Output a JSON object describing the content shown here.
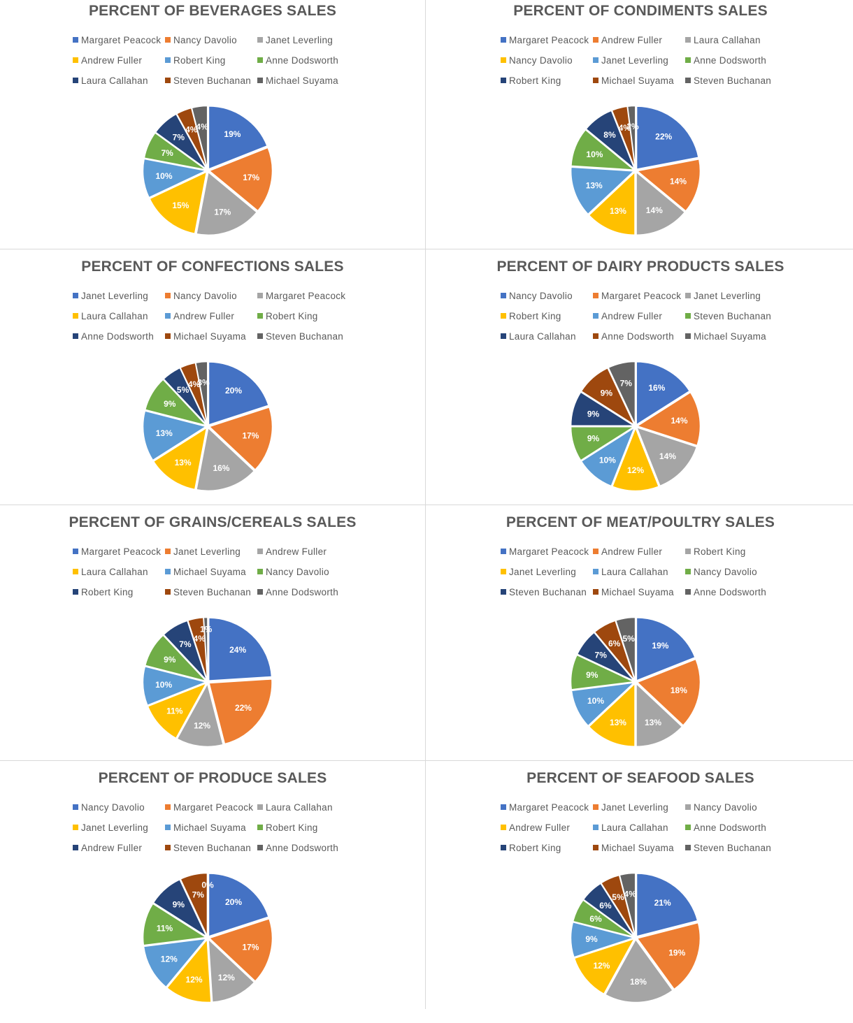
{
  "palette": [
    "#4472C4",
    "#ED7D31",
    "#A5A5A5",
    "#FFC000",
    "#5B9BD5",
    "#70AD47",
    "#264478",
    "#9E480E",
    "#636363"
  ],
  "chart_data": [
    {
      "type": "pie",
      "title": "PERCENT OF BEVERAGES SALES",
      "categories": [
        "Margaret Peacock",
        "Nancy Davolio",
        "Janet Leverling",
        "Andrew Fuller",
        "Robert King",
        "Anne Dodsworth",
        "Laura Callahan",
        "Steven Buchanan",
        "Michael Suyama"
      ],
      "values": [
        19,
        17,
        17,
        15,
        10,
        7,
        7,
        4,
        4
      ],
      "labels": [
        "19%",
        "17%",
        "17%",
        "15%",
        "10%",
        "7%",
        "7%",
        "4%",
        "4%"
      ],
      "legend": "top"
    },
    {
      "type": "pie",
      "title": "PERCENT OF CONDIMENTS SALES",
      "categories": [
        "Margaret Peacock",
        "Andrew Fuller",
        "Laura Callahan",
        "Nancy Davolio",
        "Janet Leverling",
        "Anne Dodsworth",
        "Robert King",
        "Michael Suyama",
        "Steven Buchanan"
      ],
      "values": [
        22,
        14,
        14,
        13,
        13,
        10,
        8,
        4,
        2
      ],
      "labels": [
        "22%",
        "14%",
        "14%",
        "13%",
        "13%",
        "10%",
        "8%",
        "4%",
        "2%"
      ],
      "legend": "top"
    },
    {
      "type": "pie",
      "title": "PERCENT OF CONFECTIONS SALES",
      "categories": [
        "Janet Leverling",
        "Nancy Davolio",
        "Margaret Peacock",
        "Laura Callahan",
        "Andrew Fuller",
        "Robert King",
        "Anne Dodsworth",
        "Michael Suyama",
        "Steven Buchanan"
      ],
      "values": [
        20,
        17,
        16,
        13,
        13,
        9,
        5,
        4,
        3
      ],
      "labels": [
        "20%",
        "17%",
        "16%",
        "13%",
        "13%",
        "9%",
        "5%",
        "4%",
        "3%"
      ],
      "legend": "top"
    },
    {
      "type": "pie",
      "title": "PERCENT OF DAIRY PRODUCTS SALES",
      "categories": [
        "Nancy Davolio",
        "Margaret Peacock",
        "Janet Leverling",
        "Robert King",
        "Andrew Fuller",
        "Steven Buchanan",
        "Laura Callahan",
        "Anne Dodsworth",
        "Michael Suyama"
      ],
      "values": [
        16,
        14,
        14,
        12,
        10,
        9,
        9,
        9,
        7
      ],
      "labels": [
        "16%",
        "14%",
        "14%",
        "12%",
        "10%",
        "9%",
        "9%",
        "9%",
        "7%"
      ],
      "legend": "top"
    },
    {
      "type": "pie",
      "title": "PERCENT OF GRAINS/CEREALS SALES",
      "categories": [
        "Margaret Peacock",
        "Janet Leverling",
        "Andrew Fuller",
        "Laura Callahan",
        "Michael Suyama",
        "Nancy Davolio",
        "Robert King",
        "Steven Buchanan",
        "Anne Dodsworth"
      ],
      "values": [
        24,
        22,
        12,
        11,
        10,
        9,
        7,
        4,
        1
      ],
      "labels": [
        "24%",
        "22%",
        "12%",
        "11%",
        "10%",
        "9%",
        "7%",
        "4%",
        "1%"
      ],
      "legend": "top"
    },
    {
      "type": "pie",
      "title": "PERCENT OF MEAT/POULTRY SALES",
      "categories": [
        "Margaret Peacock",
        "Andrew Fuller",
        "Robert King",
        "Janet Leverling",
        "Laura Callahan",
        "Nancy Davolio",
        "Steven Buchanan",
        "Michael Suyama",
        "Anne Dodsworth"
      ],
      "values": [
        19,
        18,
        13,
        13,
        10,
        9,
        7,
        6,
        5
      ],
      "labels": [
        "19%",
        "18%",
        "13%",
        "13%",
        "10%",
        "9%",
        "7%",
        "6%",
        "5%"
      ],
      "legend": "top"
    },
    {
      "type": "pie",
      "title": "PERCENT OF PRODUCE SALES",
      "categories": [
        "Nancy Davolio",
        "Margaret Peacock",
        "Laura Callahan",
        "Janet Leverling",
        "Michael Suyama",
        "Robert King",
        "Andrew Fuller",
        "Steven Buchanan",
        "Anne Dodsworth"
      ],
      "values": [
        20,
        17,
        12,
        12,
        12,
        11,
        9,
        7,
        0
      ],
      "labels": [
        "20%",
        "17%",
        "12%",
        "12%",
        "12%",
        "11%",
        "9%",
        "7%",
        "0%"
      ],
      "legend": "top"
    },
    {
      "type": "pie",
      "title": "PERCENT OF SEAFOOD SALES",
      "categories": [
        "Margaret Peacock",
        "Janet Leverling",
        "Nancy Davolio",
        "Andrew Fuller",
        "Laura Callahan",
        "Anne Dodsworth",
        "Robert King",
        "Michael Suyama",
        "Steven Buchanan"
      ],
      "values": [
        21,
        19,
        18,
        12,
        9,
        6,
        6,
        5,
        4
      ],
      "labels": [
        "21%",
        "19%",
        "18%",
        "12%",
        "9%",
        "6%",
        "6%",
        "5%",
        "4%"
      ],
      "legend": "top"
    }
  ]
}
